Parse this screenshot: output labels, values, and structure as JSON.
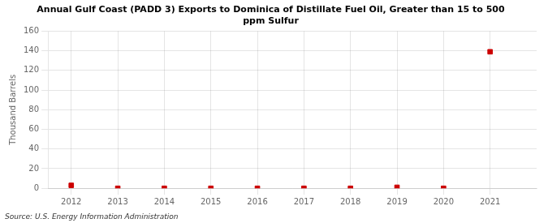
{
  "chart_data": {
    "type": "scatter",
    "title": "Annual Gulf Coast (PADD 3) Exports to Dominica of Distillate Fuel Oil, Greater than 15 to 500\nppm Sulfur",
    "ylabel": "Thousand Barrels",
    "annotation": "Source: U.S. Energy Information Administration",
    "x": [
      2012,
      2013,
      2014,
      2015,
      2016,
      2017,
      2018,
      2019,
      2020,
      2021
    ],
    "values": [
      3,
      0,
      0,
      0,
      0,
      0,
      0,
      1,
      0,
      139
    ],
    "color": "#cc0000",
    "marker": "square",
    "xlim": [
      2011.5,
      2022.0
    ],
    "xticks": [
      2012,
      2013,
      2014,
      2015,
      2016,
      2017,
      2018,
      2019,
      2020,
      2021
    ],
    "ylim": [
      0,
      160
    ],
    "yticks": [
      0,
      20,
      40,
      60,
      80,
      100,
      120,
      140,
      160
    ],
    "grid": true
  }
}
